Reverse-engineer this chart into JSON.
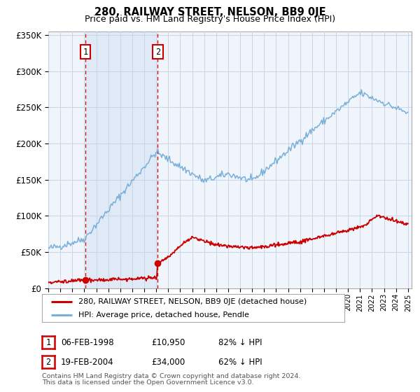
{
  "title": "280, RAILWAY STREET, NELSON, BB9 0JE",
  "subtitle": "Price paid vs. HM Land Registry's House Price Index (HPI)",
  "ylim_max": 355000,
  "yticks": [
    0,
    50000,
    100000,
    150000,
    200000,
    250000,
    300000,
    350000
  ],
  "ytick_labels": [
    "£0",
    "£50K",
    "£100K",
    "£150K",
    "£200K",
    "£250K",
    "£300K",
    "£350K"
  ],
  "xmin": 1995.0,
  "xmax": 2025.3,
  "hpi_color": "#7ab0d8",
  "hpi_fill_color": "#dce9f5",
  "price_color": "#cc0000",
  "plot_bg_color": "#f0f5fc",
  "grid_color": "#c8d4e8",
  "legend_label_red": "280, RAILWAY STREET, NELSON, BB9 0JE (detached house)",
  "legend_label_blue": "HPI: Average price, detached house, Pendle",
  "t1_year": 1998.09,
  "t1_price": 10950,
  "t1_date": "06-FEB-1998",
  "t1_hpi": "82% ↓ HPI",
  "t2_year": 2004.12,
  "t2_price": 34000,
  "t2_date": "19-FEB-2004",
  "t2_hpi": "62% ↓ HPI",
  "footnote_line1": "Contains HM Land Registry data © Crown copyright and database right 2024.",
  "footnote_line2": "This data is licensed under the Open Government Licence v3.0.",
  "shade_color": "#dce9f5"
}
